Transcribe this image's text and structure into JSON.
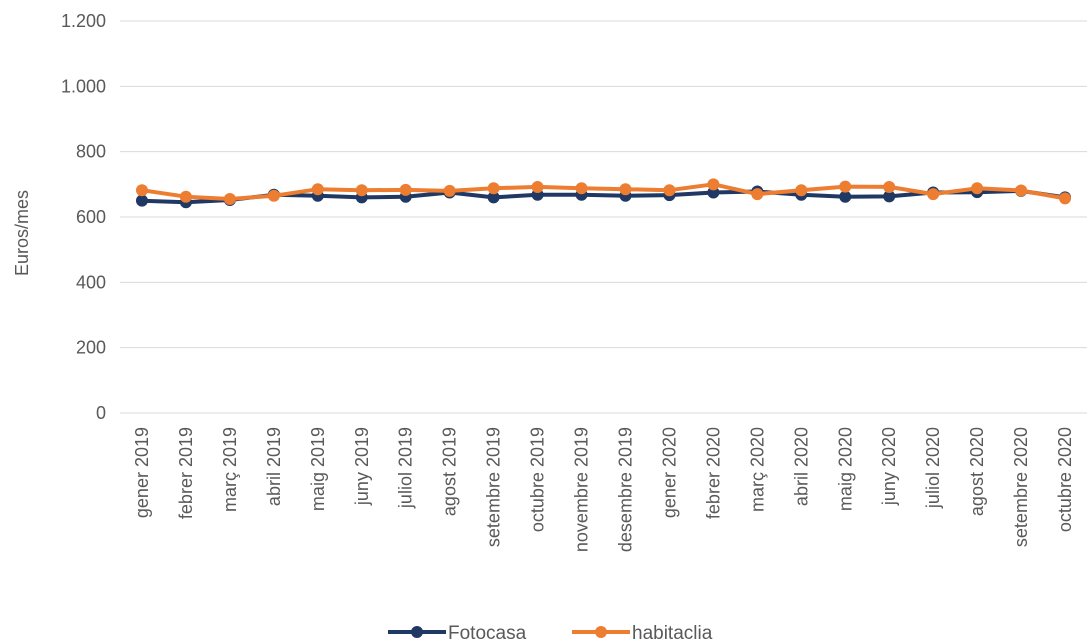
{
  "chart_data": {
    "type": "line",
    "ylabel": "Euros/mes",
    "xlabel": "",
    "ylim": [
      0,
      1200
    ],
    "yticks": [
      0,
      200,
      400,
      600,
      800,
      1000,
      1200
    ],
    "ytick_labels": [
      "0",
      "200",
      "400",
      "600",
      "800",
      "1.000",
      "1.200"
    ],
    "grid": true,
    "legend_position": "bottom",
    "categories": [
      "gener 2019",
      "febrer 2019",
      "març 2019",
      "abril 2019",
      "maig 2019",
      "juny 2019",
      "juliol 2019",
      "agost 2019",
      "setembre 2019",
      "octubre 2019",
      "novembre 2019",
      "desembre 2019",
      "gener 2020",
      "febrer 2020",
      "març 2020",
      "abril 2020",
      "maig 2020",
      "juny 2020",
      "juliol 2020",
      "agost 2020",
      "setembre 2020",
      "octubre 2020"
    ],
    "series": [
      {
        "name": "Fotocasa",
        "color": "#1f3864",
        "values": [
          650,
          645,
          652,
          668,
          665,
          660,
          662,
          675,
          660,
          668,
          668,
          665,
          667,
          675,
          678,
          668,
          662,
          663,
          675,
          676,
          680,
          660
        ]
      },
      {
        "name": "habitaclia",
        "color": "#ed7d31",
        "values": [
          682,
          662,
          655,
          665,
          685,
          682,
          683,
          680,
          688,
          692,
          688,
          685,
          682,
          700,
          670,
          682,
          693,
          692,
          670,
          688,
          681,
          657
        ]
      }
    ]
  }
}
